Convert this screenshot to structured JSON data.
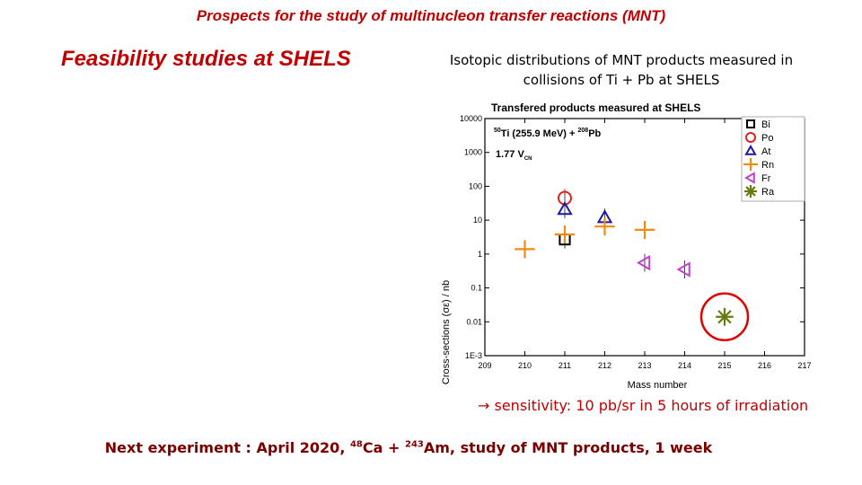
{
  "slide": {
    "title": "Prospects for the study of multinucleon transfer reactions (MNT)",
    "subtitle": "Feasibility studies at SHELS",
    "description": "Isotopic distributions of MNT products measured in collisions of Ti + Pb at SHELS",
    "sensitivity_arrow": "→",
    "sensitivity": " sensitivity: 10 pb/sr in 5 hours of irradiation",
    "next_prefix": "Next experiment : April 2020, ",
    "next_ca_mass": "48",
    "next_ca": "Ca + ",
    "next_am_mass": "243",
    "next_am": "Am, study of MNT products, 1 week"
  },
  "colors": {
    "title_red": "#c00000",
    "Bi": "#000000",
    "Po": "#e02020",
    "At": "#1a1aa0",
    "Rn": "#f08a10",
    "Fr": "#c040d0",
    "Ra": "#6a7a10",
    "highlight": "#e00000"
  },
  "chart_data": {
    "type": "scatter",
    "title": "Transfered products measured at SHELS",
    "reaction": {
      "ti_mass": "50",
      "ti_text": "Ti (255.9 MeV) + ",
      "pb_mass": "208",
      "pb_text": "Pb"
    },
    "energy": {
      "value": "1.77 V",
      "sub": "CN"
    },
    "xlabel": "Mass number",
    "ylabel": "Cross-sections (σε) / nb",
    "xlim": [
      209,
      217
    ],
    "xticks": [
      "209",
      "210",
      "211",
      "212",
      "213",
      "214",
      "215",
      "216",
      "217"
    ],
    "ylim": [
      0.001,
      10000
    ],
    "yscale": "log",
    "yticks": [
      {
        "value": 0.001,
        "label": "1E-3"
      },
      {
        "value": 0.01,
        "label": "0.01"
      },
      {
        "value": 0.1,
        "label": "0.1"
      },
      {
        "value": 1,
        "label": "1"
      },
      {
        "value": 10,
        "label": "10"
      },
      {
        "value": 100,
        "label": "100"
      },
      {
        "value": 1000,
        "label": "1000"
      },
      {
        "value": 10000,
        "label": "10000"
      }
    ],
    "legend_position": "top-right",
    "series": [
      {
        "name": "Bi",
        "marker": "square",
        "points": [
          {
            "x": 211,
            "y": 2.7
          }
        ]
      },
      {
        "name": "Po",
        "marker": "circle",
        "points": [
          {
            "x": 211,
            "y": 45
          }
        ]
      },
      {
        "name": "At",
        "marker": "triangle",
        "points": [
          {
            "x": 211,
            "y": 21
          },
          {
            "x": 212,
            "y": 12
          }
        ]
      },
      {
        "name": "Rn",
        "marker": "plus",
        "points": [
          {
            "x": 210,
            "y": 1.4
          },
          {
            "x": 211,
            "y": 3.8
          },
          {
            "x": 212,
            "y": 6.5
          },
          {
            "x": 213,
            "y": 5.2
          }
        ]
      },
      {
        "name": "Fr",
        "marker": "triangle-left",
        "points": [
          {
            "x": 213,
            "y": 0.55
          },
          {
            "x": 214,
            "y": 0.35
          }
        ]
      },
      {
        "name": "Ra",
        "marker": "asterisk",
        "points": [
          {
            "x": 215,
            "y": 0.014
          }
        ]
      }
    ],
    "highlight": {
      "x": 215,
      "y": 0.014
    }
  }
}
